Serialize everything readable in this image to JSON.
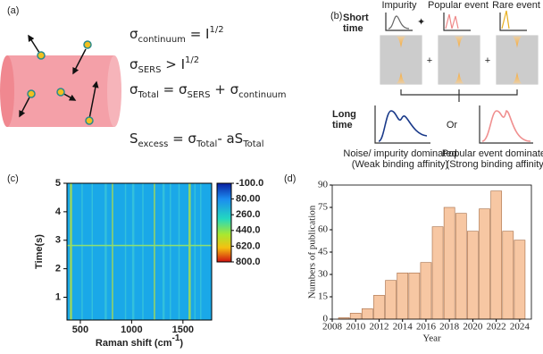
{
  "panel_a": {
    "label": "(a)",
    "equations": [
      [
        "σ",
        {
          "sub": "continuum"
        },
        " = I",
        {
          "sup": "1/2"
        }
      ],
      [
        "σ",
        {
          "sub": "SERS"
        },
        " > I",
        {
          "sup": "1/2"
        }
      ],
      [
        "σ",
        {
          "sub": "Total"
        },
        " = σ",
        {
          "sub": "SERS"
        },
        " + σ",
        {
          "sub": "continuum"
        }
      ],
      [
        "S",
        {
          "sub": "excess"
        },
        " = σ",
        {
          "sub": "Total"
        },
        "- aS",
        {
          "sub": "Total"
        }
      ]
    ]
  },
  "panel_b": {
    "label": "(b)",
    "short_time": [
      "Short",
      "time"
    ],
    "events": [
      "Impurity",
      "Popular event",
      "Rare event"
    ],
    "plus": [
      "+",
      "+"
    ],
    "long_time": [
      "Long",
      "time"
    ],
    "or": "Or",
    "captions": [
      [
        "Noise/ impurity dominated",
        "(Weak binding affinity)"
      ],
      [
        "Popular event dominated",
        "(Strong binding affinity)"
      ]
    ]
  },
  "panel_labels": [
    "(c)",
    "(d)"
  ],
  "chart_data": [
    {
      "type": "heatmap",
      "xlabel": [
        "Raman shift (cm",
        {
          "sup": "-1"
        },
        ")"
      ],
      "ylabel": "Time(s)",
      "xlim": [
        370,
        1780
      ],
      "xticks": [
        500,
        1000,
        1500
      ],
      "ylim": [
        0.2,
        5
      ],
      "yticks": [
        1,
        2,
        3,
        4,
        5
      ],
      "colorbar": {
        "lim": [
          -100,
          800
        ],
        "ticks": [
          {
            "value": -100,
            "label": "-100.0"
          },
          {
            "value": 80,
            "label": "80.00"
          },
          {
            "value": 260,
            "label": "260.0"
          },
          {
            "value": 440,
            "label": "440.0"
          },
          {
            "value": 620,
            "label": "620.0"
          },
          {
            "value": 800,
            "label": "800.0"
          }
        ]
      }
    },
    {
      "type": "bar",
      "xlabel": "Year",
      "ylabel": "Numbers of publication",
      "color": "#f7c7a3",
      "x": [
        2009,
        2010,
        2011,
        2012,
        2013,
        2014,
        2015,
        2016,
        2017,
        2018,
        2019,
        2020,
        2021,
        2022,
        2023,
        2024
      ],
      "values": [
        1,
        4,
        7,
        16,
        26,
        31,
        31,
        38,
        62,
        75,
        71,
        59,
        74,
        86,
        59,
        53
      ],
      "xlim": [
        2008,
        2025
      ],
      "xticks": [
        2008,
        2010,
        2012,
        2014,
        2016,
        2018,
        2020,
        2022,
        2024
      ],
      "ylim": [
        0,
        90
      ],
      "yticks": [
        0,
        15,
        30,
        45,
        60,
        75,
        90
      ]
    }
  ]
}
